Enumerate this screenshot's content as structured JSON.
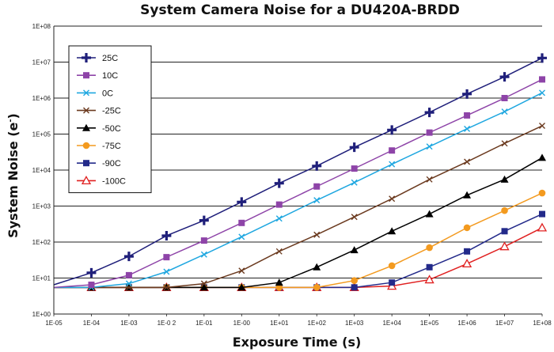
{
  "chart_data": {
    "type": "line",
    "title": "System Camera Noise for a DU420A-BRDD",
    "xlabel": "Exposure Time (s)",
    "ylabel_main": "System Noise (e",
    "ylabel_sup": "-",
    "ylabel_close": ")",
    "x_scale": "log",
    "y_scale": "log",
    "xlim": [
      1e-05,
      100000000.0
    ],
    "ylim": [
      1,
      100000000.0
    ],
    "grid": "horizontal",
    "legend_position": "top-left",
    "x_tick_labels": [
      "1E-05",
      "1E-04",
      "1E-03",
      "1E-0 2",
      "1E-01",
      "1E-00",
      "1E+01",
      "1E+02",
      "1E+03",
      "1E+04",
      "1E+05",
      "1E+06",
      "1E+07",
      "1E+08"
    ],
    "y_tick_labels": [
      "1E+00",
      "1E+01",
      "1E+02",
      "1E+03",
      "1E+04",
      "1E+05",
      "1E+06",
      "1E+07",
      "1E+08"
    ],
    "x": [
      1e-05,
      0.0001,
      0.001,
      0.01,
      0.1,
      1,
      10,
      100,
      1000,
      10000,
      100000,
      1000000,
      10000000,
      100000000
    ],
    "series": [
      {
        "name": "25C",
        "color": "#1f1f7a",
        "marker": "plus",
        "values": [
          6.5,
          14,
          40,
          150,
          400,
          1300,
          4300,
          13000,
          43000,
          130000,
          400000,
          1300000,
          3900000,
          13000000
        ]
      },
      {
        "name": "10C",
        "color": "#8e44a8",
        "marker": "square",
        "values": [
          5.5,
          6.5,
          12,
          38,
          110,
          340,
          1100,
          3500,
          11000,
          35000,
          110000,
          330000,
          1000000,
          3300000
        ]
      },
      {
        "name": "0C",
        "color": "#1fa7e0",
        "marker": "x",
        "values": [
          5.5,
          5.5,
          7,
          15,
          45,
          140,
          450,
          1450,
          4500,
          14500,
          45000,
          140000,
          420000,
          1400000
        ]
      },
      {
        "name": "-25C",
        "color": "#6b3a1f",
        "marker": "x",
        "values": [
          5.5,
          5.5,
          5.5,
          5.5,
          7,
          16,
          55,
          160,
          500,
          1600,
          5500,
          17000,
          55000,
          170000
        ]
      },
      {
        "name": "-50C",
        "color": "#000000",
        "marker": "triangle",
        "values": [
          5.5,
          5.5,
          5.5,
          5.5,
          5.5,
          5.5,
          7.5,
          20,
          60,
          200,
          600,
          2000,
          5500,
          22000
        ]
      },
      {
        "name": "-75C",
        "color": "#f39a1f",
        "marker": "circle",
        "values": [
          5.5,
          5.5,
          5.5,
          5.5,
          5.5,
          5.5,
          5.5,
          5.5,
          8.5,
          22,
          70,
          250,
          750,
          2300
        ]
      },
      {
        "name": "-90C",
        "color": "#232a8a",
        "marker": "square",
        "values": [
          5.5,
          5.5,
          5.5,
          5.5,
          5.5,
          5.5,
          5.5,
          5.5,
          5.5,
          7.5,
          20,
          55,
          200,
          600
        ]
      },
      {
        "name": "-100C",
        "color": "#e02020",
        "marker": "triangle-open",
        "values": [
          5.5,
          5.5,
          5.5,
          5.5,
          5.5,
          5.5,
          5.5,
          5.5,
          5.5,
          6,
          9,
          25,
          75,
          250
        ]
      }
    ]
  }
}
